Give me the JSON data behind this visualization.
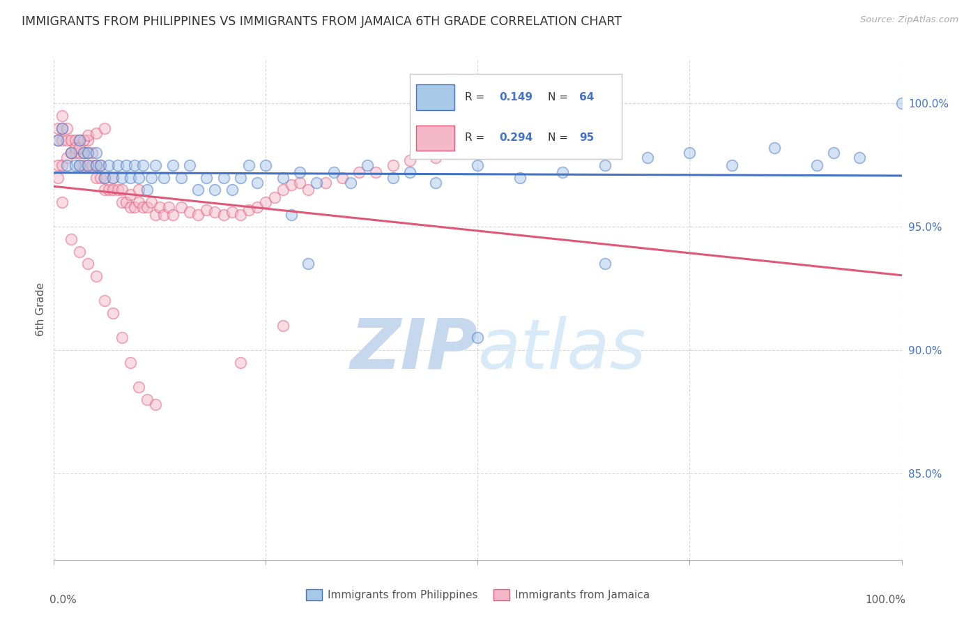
{
  "title": "IMMIGRANTS FROM PHILIPPINES VS IMMIGRANTS FROM JAMAICA 6TH GRADE CORRELATION CHART",
  "source_text": "Source: ZipAtlas.com",
  "ylabel": "6th Grade",
  "ytick_labels": [
    "100.0%",
    "95.0%",
    "90.0%",
    "85.0%"
  ],
  "ytick_values": [
    1.0,
    0.95,
    0.9,
    0.85
  ],
  "xlim": [
    0.0,
    1.0
  ],
  "ylim": [
    0.815,
    1.018
  ],
  "R_philippines": 0.149,
  "N_philippines": 64,
  "R_jamaica": 0.294,
  "N_jamaica": 95,
  "color_philippines": "#a8c8e8",
  "color_jamaica": "#f4b8c8",
  "line_color_philippines": "#4472c4",
  "line_color_jamaica": "#e05878",
  "watermark_color": "#ddeeff",
  "background_color": "#ffffff",
  "grid_color": "#cccccc",
  "title_fontsize": 12.5,
  "axis_label_fontsize": 11,
  "legend_fontsize": 12,
  "scatter_size": 130,
  "scatter_alpha": 0.5,
  "philippines_x": [
    0.005,
    0.01,
    0.015,
    0.02,
    0.025,
    0.03,
    0.03,
    0.035,
    0.04,
    0.04,
    0.05,
    0.05,
    0.055,
    0.06,
    0.065,
    0.07,
    0.075,
    0.08,
    0.085,
    0.09,
    0.095,
    0.1,
    0.105,
    0.11,
    0.115,
    0.12,
    0.13,
    0.14,
    0.15,
    0.16,
    0.17,
    0.18,
    0.19,
    0.2,
    0.21,
    0.22,
    0.23,
    0.24,
    0.25,
    0.27,
    0.29,
    0.31,
    0.33,
    0.35,
    0.37,
    0.4,
    0.42,
    0.45,
    0.5,
    0.55,
    0.6,
    0.65,
    0.7,
    0.75,
    0.8,
    0.85,
    0.9,
    0.92,
    0.95,
    1.0,
    0.28,
    0.3,
    0.5,
    0.65
  ],
  "philippines_y": [
    0.985,
    0.99,
    0.975,
    0.98,
    0.975,
    0.985,
    0.975,
    0.98,
    0.975,
    0.98,
    0.975,
    0.98,
    0.975,
    0.97,
    0.975,
    0.97,
    0.975,
    0.97,
    0.975,
    0.97,
    0.975,
    0.97,
    0.975,
    0.965,
    0.97,
    0.975,
    0.97,
    0.975,
    0.97,
    0.975,
    0.965,
    0.97,
    0.965,
    0.97,
    0.965,
    0.97,
    0.975,
    0.968,
    0.975,
    0.97,
    0.972,
    0.968,
    0.972,
    0.968,
    0.975,
    0.97,
    0.972,
    0.968,
    0.975,
    0.97,
    0.972,
    0.975,
    0.978,
    0.98,
    0.975,
    0.982,
    0.975,
    0.98,
    0.978,
    1.0,
    0.955,
    0.935,
    0.905,
    0.935
  ],
  "jamaica_x": [
    0.005,
    0.005,
    0.01,
    0.01,
    0.01,
    0.015,
    0.015,
    0.02,
    0.02,
    0.025,
    0.025,
    0.03,
    0.03,
    0.03,
    0.035,
    0.035,
    0.04,
    0.04,
    0.04,
    0.045,
    0.045,
    0.05,
    0.05,
    0.055,
    0.055,
    0.06,
    0.06,
    0.065,
    0.07,
    0.07,
    0.075,
    0.08,
    0.08,
    0.085,
    0.09,
    0.09,
    0.095,
    0.1,
    0.1,
    0.105,
    0.11,
    0.115,
    0.12,
    0.125,
    0.13,
    0.135,
    0.14,
    0.15,
    0.16,
    0.17,
    0.18,
    0.19,
    0.2,
    0.21,
    0.22,
    0.23,
    0.24,
    0.25,
    0.26,
    0.27,
    0.28,
    0.29,
    0.3,
    0.32,
    0.34,
    0.36,
    0.38,
    0.4,
    0.42,
    0.45,
    0.005,
    0.01,
    0.015,
    0.02,
    0.025,
    0.03,
    0.035,
    0.04,
    0.05,
    0.06,
    0.005,
    0.01,
    0.02,
    0.03,
    0.04,
    0.05,
    0.06,
    0.07,
    0.08,
    0.09,
    0.1,
    0.11,
    0.12,
    0.22,
    0.27
  ],
  "jamaica_y": [
    0.985,
    0.99,
    0.985,
    0.99,
    0.995,
    0.985,
    0.99,
    0.98,
    0.985,
    0.98,
    0.985,
    0.975,
    0.98,
    0.985,
    0.975,
    0.98,
    0.975,
    0.98,
    0.985,
    0.975,
    0.98,
    0.97,
    0.975,
    0.97,
    0.975,
    0.965,
    0.97,
    0.965,
    0.965,
    0.97,
    0.965,
    0.96,
    0.965,
    0.96,
    0.958,
    0.963,
    0.958,
    0.96,
    0.965,
    0.958,
    0.958,
    0.96,
    0.955,
    0.958,
    0.955,
    0.958,
    0.955,
    0.958,
    0.956,
    0.955,
    0.957,
    0.956,
    0.955,
    0.956,
    0.955,
    0.957,
    0.958,
    0.96,
    0.962,
    0.965,
    0.967,
    0.968,
    0.965,
    0.968,
    0.97,
    0.972,
    0.972,
    0.975,
    0.977,
    0.978,
    0.975,
    0.975,
    0.978,
    0.98,
    0.982,
    0.982,
    0.985,
    0.987,
    0.988,
    0.99,
    0.97,
    0.96,
    0.945,
    0.94,
    0.935,
    0.93,
    0.92,
    0.915,
    0.905,
    0.895,
    0.885,
    0.88,
    0.878,
    0.895,
    0.91
  ]
}
